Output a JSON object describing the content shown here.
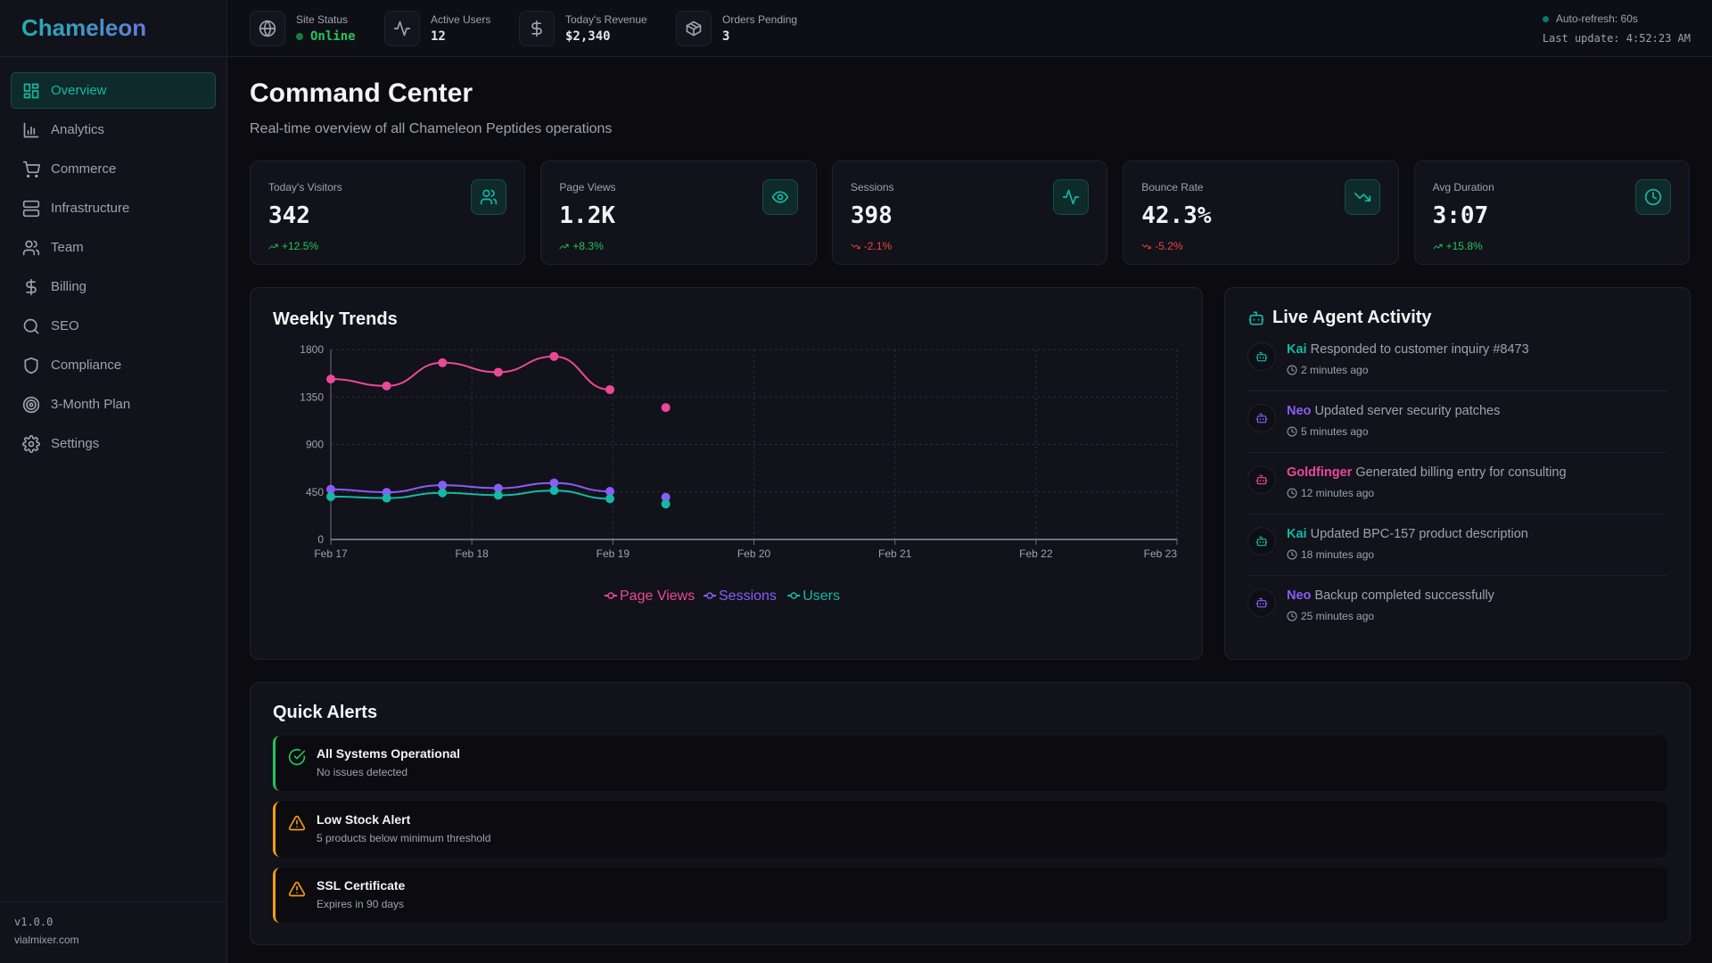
{
  "app": {
    "name": "Chameleon",
    "version": "v1.0.0",
    "domain": "vialmixer.com"
  },
  "colors": {
    "accent": "#14b8a6",
    "purple": "#8b5cf6",
    "pink": "#ec4899",
    "green": "#22c55e",
    "red": "#ef4444",
    "amber": "#f59e0b"
  },
  "sidebar": {
    "items": [
      {
        "label": "Overview",
        "icon": "layout-dashboard-icon",
        "active": true
      },
      {
        "label": "Analytics",
        "icon": "bar-chart-icon"
      },
      {
        "label": "Commerce",
        "icon": "shopping-cart-icon"
      },
      {
        "label": "Infrastructure",
        "icon": "server-icon"
      },
      {
        "label": "Team",
        "icon": "users-icon"
      },
      {
        "label": "Billing",
        "icon": "dollar-icon"
      },
      {
        "label": "SEO",
        "icon": "search-icon"
      },
      {
        "label": "Compliance",
        "icon": "shield-icon"
      },
      {
        "label": "3-Month Plan",
        "icon": "target-icon"
      },
      {
        "label": "Settings",
        "icon": "gear-icon"
      }
    ]
  },
  "topbar": {
    "stats": [
      {
        "label": "Site Status",
        "value": "Online",
        "icon": "globe-icon"
      },
      {
        "label": "Active Users",
        "value": "12",
        "icon": "activity-icon"
      },
      {
        "label": "Today's Revenue",
        "value": "$2,340",
        "icon": "dollar-icon"
      },
      {
        "label": "Orders Pending",
        "value": "3",
        "icon": "package-icon"
      }
    ],
    "auto_refresh": "Auto-refresh: 60s",
    "last_update": "Last update: 4:52:23 AM"
  },
  "page": {
    "title": "Command Center",
    "subtitle": "Real-time overview of all Chameleon Peptides operations"
  },
  "cards": [
    {
      "label": "Today's Visitors",
      "value": "342",
      "change": "+12.5%",
      "trend": "up",
      "icon": "users-icon"
    },
    {
      "label": "Page Views",
      "value": "1.2K",
      "change": "+8.3%",
      "trend": "up",
      "icon": "eye-icon"
    },
    {
      "label": "Sessions",
      "value": "398",
      "change": "-2.1%",
      "trend": "down",
      "icon": "activity-icon"
    },
    {
      "label": "Bounce Rate",
      "value": "42.3%",
      "change": "-5.2%",
      "trend": "down",
      "icon": "trending-down-icon"
    },
    {
      "label": "Avg Duration",
      "value": "3:07",
      "change": "+15.8%",
      "trend": "up",
      "icon": "clock-icon"
    }
  ],
  "chart_data": {
    "type": "line",
    "title": "Weekly Trends",
    "x": [
      "Feb 17 00:00",
      "Feb 17 09:30",
      "Feb 17 19:00",
      "Feb 18 04:30",
      "Feb 18 14:00",
      "Feb 18 23:30",
      "Feb 19 09:00"
    ],
    "x_ticks": [
      "Feb 17",
      "Feb 18",
      "Feb 19",
      "Feb 20",
      "Feb 21",
      "Feb 22",
      "Feb 23"
    ],
    "y_ticks": [
      0,
      450,
      900,
      1350,
      1800
    ],
    "ylim": [
      0,
      1800
    ],
    "grid": true,
    "legend": "bottom",
    "series": [
      {
        "name": "Page Views",
        "color": "#ec4899",
        "values": [
          1520,
          1455,
          1675,
          1585,
          1735,
          1420,
          1250
        ],
        "connected_points": 6
      },
      {
        "name": "Sessions",
        "color": "#8b5cf6",
        "values": [
          475,
          447,
          514,
          486,
          536,
          456,
          400
        ],
        "connected_points": 6
      },
      {
        "name": "Users",
        "color": "#14b8a6",
        "values": [
          406,
          392,
          442,
          419,
          464,
          386,
          336
        ],
        "connected_points": 6
      }
    ]
  },
  "activity": {
    "title": "Live Agent Activity",
    "items": [
      {
        "agent": "Kai",
        "color": "#14b8a6",
        "text": "Responded to customer inquiry #8473",
        "time": "2 minutes ago"
      },
      {
        "agent": "Neo",
        "color": "#8b5cf6",
        "text": "Updated server security patches",
        "time": "5 minutes ago"
      },
      {
        "agent": "Goldfinger",
        "color": "#ec4899",
        "text": "Generated billing entry for consulting",
        "time": "12 minutes ago"
      },
      {
        "agent": "Kai",
        "color": "#14b8a6",
        "text": "Updated BPC-157 product description",
        "time": "18 minutes ago"
      },
      {
        "agent": "Neo",
        "color": "#8b5cf6",
        "text": "Backup completed successfully",
        "time": "25 minutes ago"
      }
    ]
  },
  "alerts": {
    "title": "Quick Alerts",
    "items": [
      {
        "title": "All Systems Operational",
        "desc": "No issues detected",
        "level": "success"
      },
      {
        "title": "Low Stock Alert",
        "desc": "5 products below minimum threshold",
        "level": "warning"
      },
      {
        "title": "SSL Certificate",
        "desc": "Expires in 90 days",
        "level": "warning"
      }
    ]
  }
}
